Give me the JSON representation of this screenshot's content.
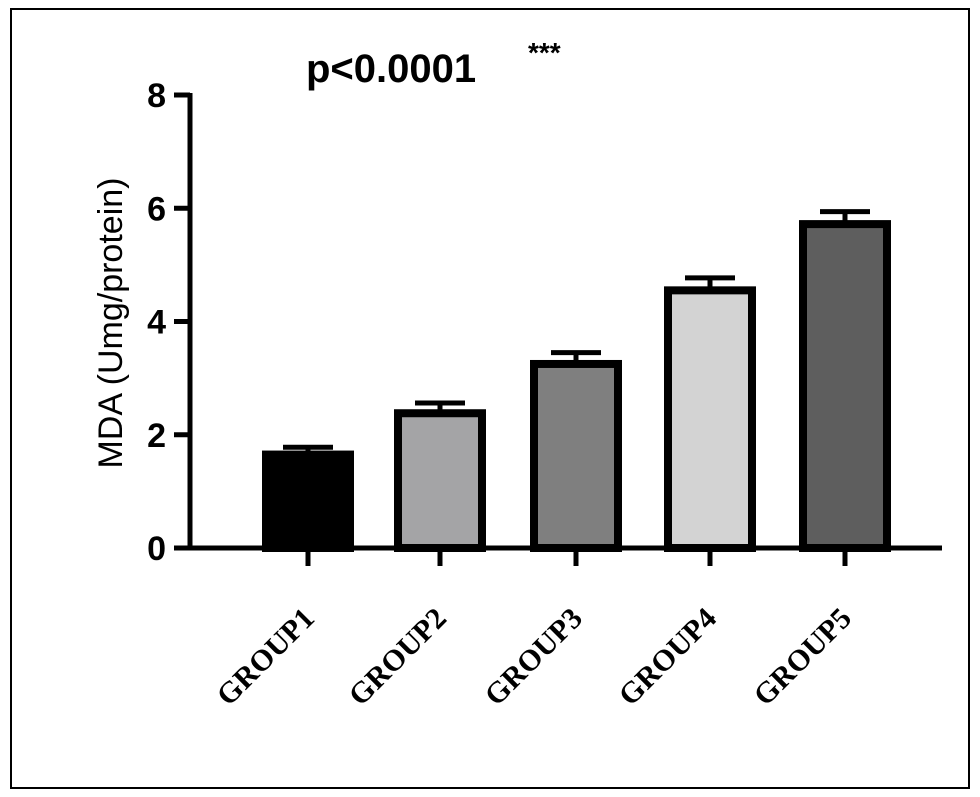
{
  "chart_data": {
    "type": "bar",
    "title": "p<0.0001",
    "title_suffix": "***",
    "xlabel": "",
    "ylabel": "MDA (Umg/protein)",
    "ylim": [
      0,
      8
    ],
    "yticks": [
      "0",
      "2",
      "4",
      "6",
      "8"
    ],
    "categories": [
      "GROUP1",
      "GROUP2",
      "GROUP3",
      "GROUP4",
      "GROUP5"
    ],
    "values": [
      1.65,
      2.38,
      3.25,
      4.55,
      5.72
    ],
    "errors": [
      0.13,
      0.18,
      0.2,
      0.22,
      0.22
    ],
    "bar_colors": [
      "#000000",
      "#a4a4a6",
      "#7f7f7f",
      "#d3d3d3",
      "#5e5e5e"
    ],
    "grid": false,
    "legend": "none"
  }
}
